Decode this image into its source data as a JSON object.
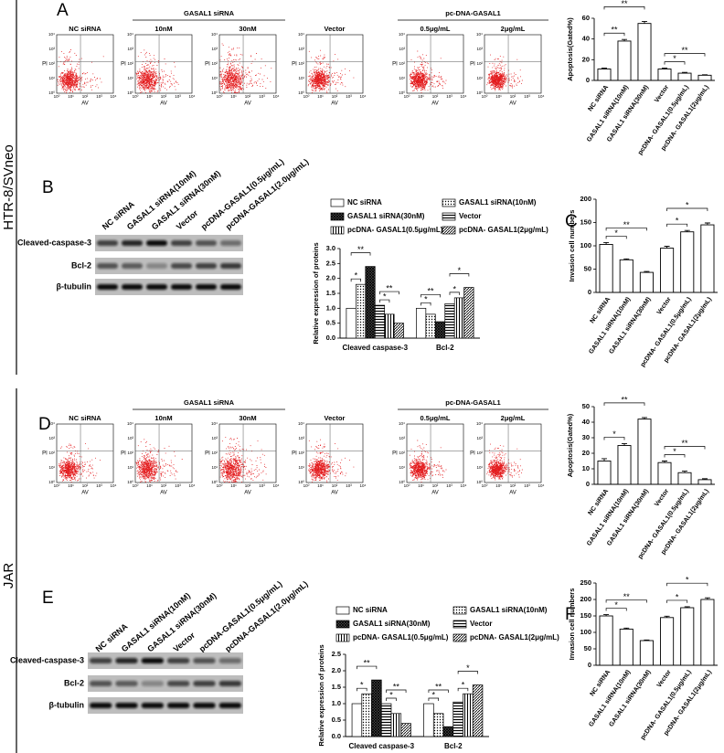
{
  "row_labels": [
    "HTR-8/SVneo",
    "JAR"
  ],
  "panel_letters": [
    "A",
    "B",
    "C",
    "D",
    "E",
    "F"
  ],
  "flow_cytometry": [
    {
      "group_headers": [
        "GASAL1 siRNA",
        "pc-DNA-GASAL1"
      ],
      "samples": [
        "NC siRNA",
        "10nM",
        "30nM",
        "Vector",
        "0.5μg/mL",
        "2μg/mL"
      ],
      "x_label": "AV",
      "y_label": "PI",
      "ticks": [
        "10⁰",
        "10¹",
        "10²",
        "10³",
        "10⁴"
      ]
    },
    {
      "group_headers": [
        "GASAL1 siRNA",
        "pc-DNA-GASAL1"
      ],
      "samples": [
        "NC siRNA",
        "10nM",
        "30nM",
        "Vector",
        "0.5μg/mL",
        "2μg/mL"
      ],
      "x_label": "AV",
      "y_label": "PI",
      "ticks": [
        "10⁰",
        "10¹",
        "10²",
        "10³",
        "10⁴"
      ]
    }
  ],
  "western_blots": [
    {
      "lanes": [
        "NC siRNA",
        "GASAL1 siRNA(10nM)",
        "GASAL1 siRNA(30nM)",
        "Vector",
        "pcDNA-GASAL1(0.5μg/mL)",
        "pcDNA-GASAL1(2.0μg/mL)"
      ],
      "proteins": [
        "Cleaved-caspase-3",
        "Bcl-2",
        "β-tubulin"
      ]
    },
    {
      "lanes": [
        "NC siRNA",
        "GASAL1 siRNA(10nM)",
        "GASAL1 siRNA(30nM)",
        "Vector",
        "pcDNA-GASAL1(0.5μg/mL)",
        "pcDNA-GASAL1(2.0μg/mL)"
      ],
      "proteins": [
        "Cleaved-caspase-3",
        "Bcl-2",
        "β-tubulin"
      ]
    }
  ],
  "chart_data": [
    {
      "type": "bar",
      "ylabel": "Apoptosis(Gated%)",
      "categories": [
        "NC siRNA",
        "GASAL1 siRNA(10nM)",
        "GASAL1 siRNA(30nM)",
        "Vector",
        "pcDNA- GASAL1(0.5μg/mL)",
        "pcDNA- GASAL1(2μg/mL)"
      ],
      "values": [
        11,
        38,
        55,
        11,
        7,
        5
      ],
      "errors": [
        0.8,
        1.5,
        2,
        0.8,
        0.8,
        0.5
      ],
      "color": "#ffffff",
      "ylim": [
        0,
        60
      ],
      "yticks": [
        0,
        20,
        40,
        60
      ],
      "annotations": [
        "**",
        "**",
        "*",
        "**"
      ]
    },
    {
      "type": "grouped_bar",
      "ylabel": "Relative expression of proteins",
      "categories": [
        "Cleaved caspase-3",
        "Bcl-2"
      ],
      "series": [
        {
          "name": "NC siRNA",
          "pattern": "none",
          "values": [
            1.0,
            1.0
          ]
        },
        {
          "name": "GASAL1 siRNA(10nM)",
          "pattern": "dots",
          "values": [
            1.8,
            0.8
          ]
        },
        {
          "name": "GASAL1 siRNA(30nM)",
          "pattern": "crosshatch",
          "values": [
            2.4,
            0.55
          ]
        },
        {
          "name": "Vector",
          "pattern": "hlines",
          "values": [
            1.1,
            1.15
          ]
        },
        {
          "name": "pcDNA- GASAL1(0.5μg/mL)",
          "pattern": "vlines",
          "values": [
            0.8,
            1.35
          ]
        },
        {
          "name": "pcDNA- GASAL1(2μg/mL)",
          "pattern": "diagonal",
          "values": [
            0.5,
            1.7
          ]
        }
      ],
      "ylim": [
        0,
        3
      ],
      "yticks": [
        {
          "value": 0,
          "label": "0.0"
        },
        {
          "value": 0.5,
          "label": "0.5"
        },
        {
          "value": 1,
          "label": "1.0"
        },
        {
          "value": 1.5,
          "label": "1.5"
        },
        {
          "value": 2,
          "label": "2.0"
        },
        {
          "value": 2.5,
          "label": "2.5"
        },
        {
          "value": 3,
          "label": "3.0"
        }
      ],
      "annotations": [
        "*",
        "**",
        "*",
        "**",
        "*",
        "**",
        "*",
        "*"
      ]
    },
    {
      "type": "bar",
      "ylabel": "Invasion cell numbers",
      "categories": [
        "NC siRNA",
        "GASAL1 siRNA(10nM)",
        "GASAL1 siRNA(30nM)",
        "Vector",
        "pcDNA- GASAL1(0.5μg/mL)",
        "pcDNA- GASAL1(2μg/mL)"
      ],
      "values": [
        103,
        70,
        43,
        95,
        130,
        145
      ],
      "errors": [
        4,
        2,
        2,
        4,
        3,
        4
      ],
      "color": "#ffffff",
      "ylim": [
        0,
        200
      ],
      "yticks": [
        0,
        50,
        100,
        150,
        200
      ],
      "annotations": [
        "*",
        "**",
        "*",
        "*"
      ]
    },
    {
      "type": "bar",
      "ylabel": "Apoptosis(Gated%)",
      "categories": [
        "NC siRNA",
        "GASAL1 siRNA(10nM)",
        "GASAL1 siRNA(30nM)",
        "Vector",
        "pcDNA- GASAL1(0.5μg/mL)",
        "pcDNA- GASAL1(2μg/mL)"
      ],
      "values": [
        15,
        25,
        42,
        14,
        7.5,
        3
      ],
      "errors": [
        1.5,
        1.2,
        1,
        1,
        1,
        0.6
      ],
      "color": "#ffffff",
      "ylim": [
        0,
        50
      ],
      "yticks": [
        0,
        10,
        20,
        30,
        40,
        50
      ],
      "annotations": [
        "*",
        "**",
        "*",
        "**"
      ]
    },
    {
      "type": "grouped_bar",
      "ylabel": "Relative expression of proteins",
      "categories": [
        "Cleaved caspase-3",
        "Bcl-2"
      ],
      "series": [
        {
          "name": "NC siRNA",
          "pattern": "none",
          "values": [
            1.0,
            1.0
          ]
        },
        {
          "name": "GASAL1 siRNA(10nM)",
          "pattern": "dots",
          "values": [
            1.3,
            0.7
          ]
        },
        {
          "name": "GASAL1 siRNA(30nM)",
          "pattern": "crosshatch",
          "values": [
            1.72,
            0.3
          ]
        },
        {
          "name": "Vector",
          "pattern": "hlines",
          "values": [
            1.0,
            1.05
          ]
        },
        {
          "name": "pcDNA- GASAL1(0.5μg/mL)",
          "pattern": "vlines",
          "values": [
            0.7,
            1.3
          ]
        },
        {
          "name": "pcDNA- GASAL1(2μg/mL)",
          "pattern": "diagonal",
          "values": [
            0.4,
            1.57
          ]
        }
      ],
      "ylim": [
        0,
        2.5
      ],
      "yticks": [
        {
          "value": 0,
          "label": "0.0"
        },
        {
          "value": 0.5,
          "label": "0.5"
        },
        {
          "value": 1,
          "label": "1.0"
        },
        {
          "value": 1.5,
          "label": "1.5"
        },
        {
          "value": 2,
          "label": "2.0"
        },
        {
          "value": 2.5,
          "label": "2.5"
        }
      ],
      "annotations": [
        "*",
        "**",
        "*",
        "**",
        "*",
        "**",
        "*",
        "*"
      ]
    },
    {
      "type": "bar",
      "ylabel": "Invasion cell numbers",
      "categories": [
        "NC siRNA",
        "GASAL1 siRNA(10nM)",
        "GASAL1 siRNA(30nM)",
        "Vector",
        "pcDNA- GASAL1(0.5μg/mL)",
        "pcDNA- GASAL1(2μg/mL)"
      ],
      "values": [
        150,
        110,
        75,
        145,
        175,
        200
      ],
      "errors": [
        4,
        3,
        2,
        4,
        3,
        5
      ],
      "color": "#ffffff",
      "ylim": [
        0,
        250
      ],
      "yticks": [
        0,
        50,
        100,
        150,
        200,
        250
      ],
      "annotations": [
        "*",
        "**",
        "*",
        "*"
      ]
    }
  ]
}
